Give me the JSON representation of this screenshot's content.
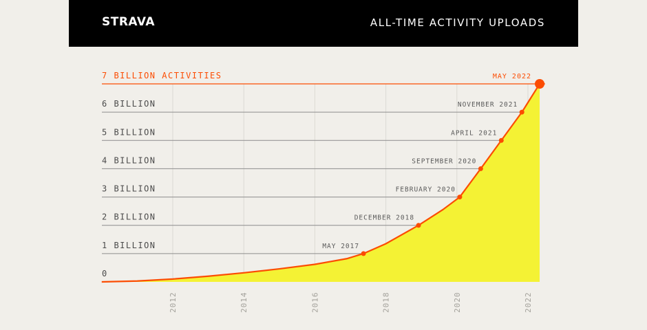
{
  "header": {
    "brand": "STRAVA",
    "title": "ALL-TIME ACTIVITY UPLOADS"
  },
  "colors": {
    "background": "#f1efea",
    "banner": "#000000",
    "line": "#fc4c02",
    "fill": "#f4f234",
    "grid": "#8c8c8c",
    "text": "#4a4a4a"
  },
  "chart_data": {
    "type": "area",
    "title": "ALL-TIME ACTIVITY UPLOADS",
    "xlabel": "",
    "ylabel": "",
    "xlim": [
      2010.0,
      2022.5
    ],
    "ylim": [
      0,
      7
    ],
    "y_ticks": [
      {
        "value": 0,
        "label": "0"
      },
      {
        "value": 1,
        "label": "1 BILLION"
      },
      {
        "value": 2,
        "label": "2 BILLION"
      },
      {
        "value": 3,
        "label": "3 BILLION"
      },
      {
        "value": 4,
        "label": "4 BILLION"
      },
      {
        "value": 5,
        "label": "5 BILLION"
      },
      {
        "value": 6,
        "label": "6 BILLION"
      },
      {
        "value": 7,
        "label": "7 BILLION ACTIVITIES"
      }
    ],
    "x_ticks": [
      "2012",
      "2014",
      "2016",
      "2018",
      "2020",
      "2022"
    ],
    "x_tick_values": [
      2012,
      2014,
      2016,
      2018,
      2020,
      2022
    ],
    "grid": "horizontal and vertical",
    "series": [
      {
        "x": [
          2010.0,
          2011.0,
          2012.0,
          2013.0,
          2014.0,
          2015.0,
          2016.0,
          2016.9,
          2017.37,
          2018.0,
          2018.92,
          2019.6,
          2020.08,
          2020.67,
          2021.25,
          2021.83,
          2022.33
        ],
        "y": [
          0,
          0.03,
          0.1,
          0.2,
          0.32,
          0.46,
          0.62,
          0.82,
          1,
          1.35,
          2,
          2.55,
          3,
          4,
          5,
          6,
          7
        ]
      }
    ],
    "milestones": [
      {
        "label": "MAY 2017",
        "x": 2017.37,
        "y": 1
      },
      {
        "label": "DECEMBER 2018",
        "x": 2018.92,
        "y": 2
      },
      {
        "label": "FEBRUARY 2020",
        "x": 2020.08,
        "y": 3
      },
      {
        "label": "SEPTEMBER 2020",
        "x": 2020.67,
        "y": 4
      },
      {
        "label": "APRIL 2021",
        "x": 2021.25,
        "y": 5
      },
      {
        "label": "NOVEMBER 2021",
        "x": 2021.83,
        "y": 6
      },
      {
        "label": "MAY 2022",
        "x": 2022.33,
        "y": 7
      }
    ]
  }
}
